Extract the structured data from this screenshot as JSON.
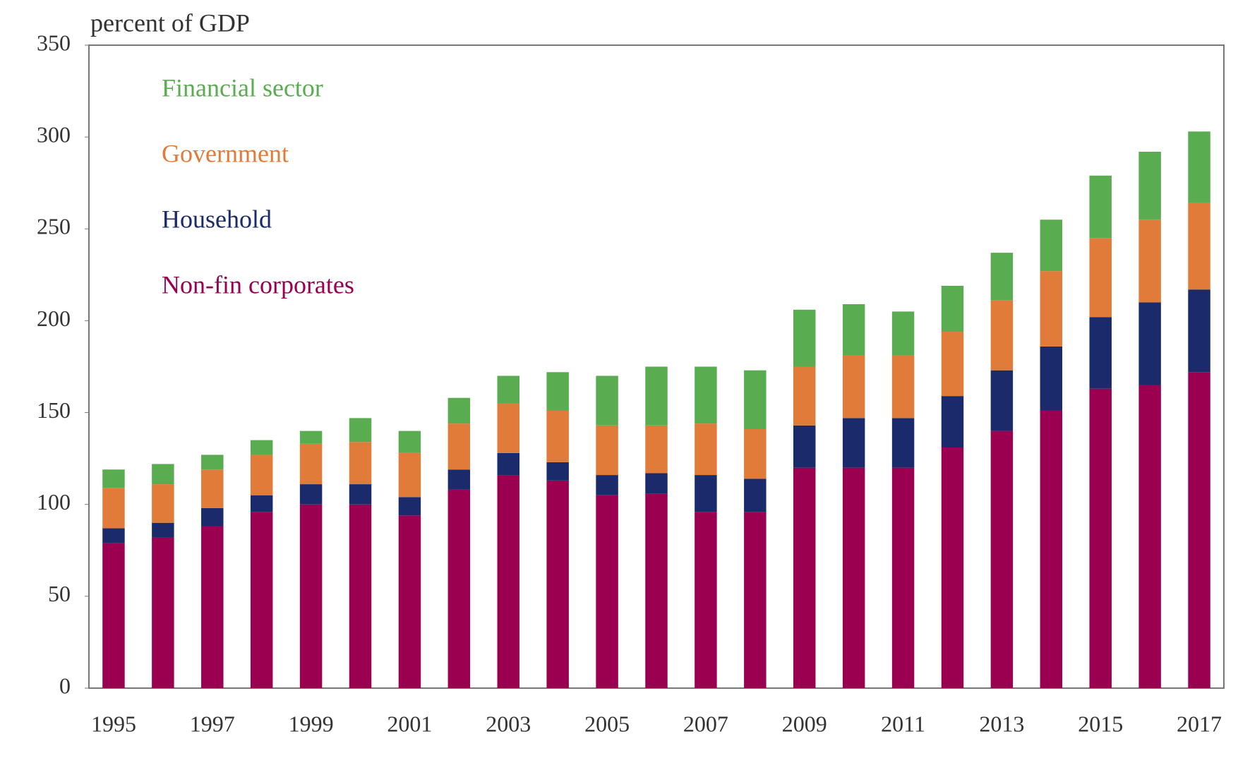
{
  "chart_data": {
    "type": "stacked_bar",
    "title": "percent of GDP",
    "categories": [
      "1995",
      null,
      "1997",
      null,
      "1999",
      null,
      "2001",
      null,
      "2003",
      null,
      "2005",
      null,
      "2007",
      null,
      "2009",
      null,
      "2011",
      null,
      "2013",
      null,
      "2015",
      null,
      "2017"
    ],
    "series": [
      {
        "name": "Non-fin corporates",
        "color": "#9b0050",
        "values": [
          79,
          82,
          88,
          96,
          100,
          100,
          94,
          108,
          116,
          113,
          105,
          106,
          96,
          96,
          120,
          120,
          120,
          131,
          140,
          151,
          163,
          165,
          172
        ]
      },
      {
        "name": "Household",
        "color": "#1b2a6b",
        "values": [
          8,
          8,
          10,
          9,
          11,
          11,
          10,
          11,
          12,
          10,
          11,
          11,
          20,
          18,
          23,
          27,
          27,
          28,
          33,
          35,
          39,
          45,
          45
        ]
      },
      {
        "name": "Government",
        "color": "#e07b39",
        "values": [
          22,
          21,
          21,
          22,
          22,
          23,
          24,
          25,
          27,
          28,
          27,
          26,
          28,
          27,
          32,
          34,
          34,
          35,
          38,
          41,
          43,
          45,
          47
        ]
      },
      {
        "name": "Financial sector",
        "color": "#5aac50",
        "values": [
          10,
          11,
          8,
          8,
          7,
          13,
          12,
          14,
          15,
          21,
          27,
          32,
          31,
          32,
          31,
          28,
          24,
          25,
          26,
          28,
          34,
          37,
          39
        ]
      }
    ],
    "ylim": [
      0,
      350
    ],
    "yticks": [
      0,
      50,
      100,
      150,
      200,
      250,
      300,
      350
    ],
    "legend": "top-left",
    "grid": false
  }
}
